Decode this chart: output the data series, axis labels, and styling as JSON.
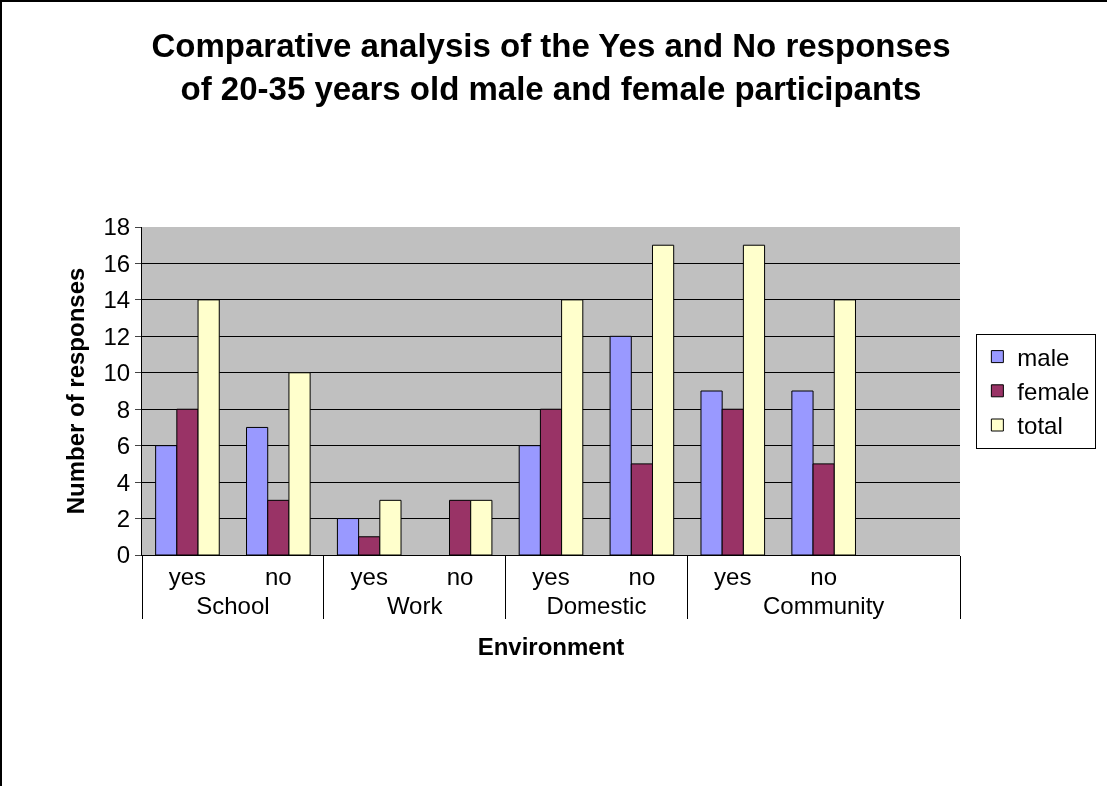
{
  "chart_data": {
    "type": "bar",
    "title": "Comparative analysis of the Yes and No responses\nof 20-35 years old male and female participants",
    "xlabel": "Environment",
    "ylabel": "Number of responses",
    "categories": [
      "yes",
      "no",
      "yes",
      "no",
      "yes",
      "no",
      "yes",
      "no",
      null
    ],
    "annotations": [
      "School",
      "Work",
      "Domestic",
      "Community"
    ],
    "series": [
      {
        "name": "male",
        "color": "#9999ff",
        "values": [
          6,
          7,
          2,
          null,
          6,
          12,
          9,
          9,
          null
        ]
      },
      {
        "name": "female",
        "color": "#993366",
        "values": [
          8,
          3,
          1,
          3,
          8,
          5,
          8,
          5,
          null
        ]
      },
      {
        "name": "total",
        "color": "#ffffcc",
        "values": [
          14,
          10,
          3,
          3,
          14,
          17,
          17,
          14,
          null
        ]
      }
    ],
    "ylim": [
      0,
      18
    ],
    "yticks": [
      0,
      2,
      4,
      6,
      8,
      10,
      12,
      14,
      16,
      18
    ],
    "grid": "y",
    "legend": "right"
  }
}
